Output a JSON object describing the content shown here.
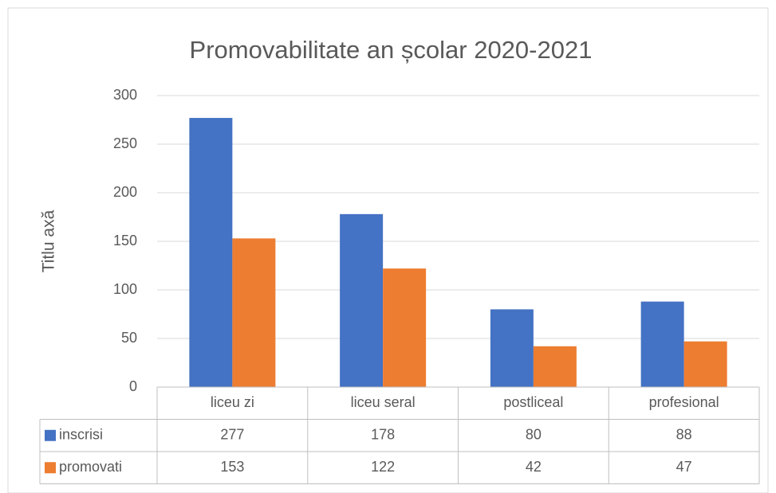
{
  "chart_data": {
    "type": "bar",
    "title": "Promovabilitate an școlar 2020-2021",
    "y_label": "Titlu axă",
    "categories": [
      "liceu zi",
      "liceu seral",
      "postliceal",
      "profesional"
    ],
    "series": [
      {
        "name": "inscrisi",
        "color": "#4472c4",
        "values": [
          277,
          178,
          80,
          88
        ]
      },
      {
        "name": "promovati",
        "color": "#ed7d31",
        "values": [
          153,
          122,
          42,
          47
        ]
      }
    ],
    "ylim": [
      0,
      300
    ],
    "yticks": [
      0,
      50,
      100,
      150,
      200,
      250,
      300
    ],
    "grid": true,
    "data_table": true
  }
}
